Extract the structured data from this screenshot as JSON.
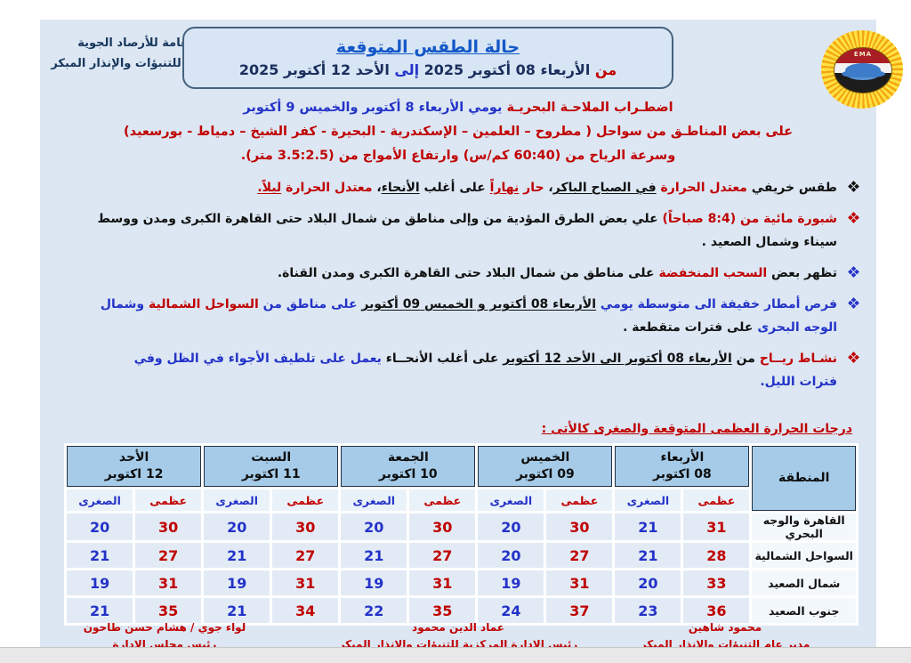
{
  "colors": {
    "red": "#c00000",
    "blue": "#2433c8",
    "navy": "#1b2f5e",
    "title_blue": "#1458c7",
    "doc_bg": "#dce7f3",
    "table_header_bg": "#a5cbe8"
  },
  "header": {
    "org_line1": "الهيئة العامة للأرصاد الجوية",
    "org_line2": "الإدارة العامة للتنبؤات والإنذار المبكر",
    "title": "حالة الطقس المتوقعة",
    "date_range": [
      {
        "t": "من ",
        "c": "r"
      },
      {
        "t": "الأربعاء 08 أكتوبر 2025 ",
        "c": "n"
      },
      {
        "t": "إلى ",
        "c": "b"
      },
      {
        "t": "الأحد 12 أكتوبر 2025",
        "c": "n"
      }
    ],
    "logo_text": "EMA"
  },
  "intro": {
    "line1": [
      {
        "t": "اضطـراب الملاحـة البحريـة ",
        "c": "r"
      },
      {
        "t": "يومي الأربعاء 8 أكتوبر والخميس 9 أكتوبر",
        "c": "b"
      }
    ],
    "line2": [
      {
        "t": "على بعض المناطـق من سواحل ( مطروح – العلمين – الإسكندرية - البحيرة - كفر الشيخ – دمياط - بورسعيد)",
        "c": "r"
      }
    ],
    "line3": [
      {
        "t": "وسرعة الرياح من (60:40 كم/س) وارتفاع الأمواج من (3.5:2.5 متر).",
        "c": "r"
      }
    ]
  },
  "bullets": [
    {
      "glyph_color": "k",
      "segments": [
        {
          "t": "طقس خريفي ",
          "c": "k"
        },
        {
          "t": "معتدل الحرارة ",
          "c": "r"
        },
        {
          "t": "في الصباح الباكر",
          "c": "k",
          "u": 1
        },
        {
          "t": "، ",
          "c": "k"
        },
        {
          "t": "حار ",
          "c": "r"
        },
        {
          "t": "نهاراً",
          "c": "r",
          "u": 1
        },
        {
          "t": " على أغلب ",
          "c": "k"
        },
        {
          "t": "الأنحاء",
          "c": "k",
          "u": 1
        },
        {
          "t": "، ",
          "c": "k"
        },
        {
          "t": "معتدل الحرارة ",
          "c": "r"
        },
        {
          "t": "ليلاً.",
          "c": "r",
          "u": 1
        }
      ]
    },
    {
      "glyph_color": "r",
      "segments": [
        {
          "t": "شبورة مائية من (8:4 صباحاً)",
          "c": "r"
        },
        {
          "t": " علي بعض الطرق المؤدية من وإلى مناطق من شمال البلاد حتى القاهرة الكبرى ومدن ووسط سيناء وشمال الصعيد .",
          "c": "k"
        }
      ]
    },
    {
      "glyph_color": "b",
      "segments": [
        {
          "t": "تظهر بعض ",
          "c": "k"
        },
        {
          "t": "السحب المنخفضة",
          "c": "r"
        },
        {
          "t": " على مناطق من شمال البلاد حتى القاهرة الكبرى ومدن القناة.",
          "c": "k"
        }
      ]
    },
    {
      "glyph_color": "b",
      "segments": [
        {
          "t": "فرص أمطار خفيفة الى متوسطة يومي ",
          "c": "b"
        },
        {
          "t": "الأربعاء 08 أكتوبر و الخميس 09 أكتوبر",
          "c": "k",
          "u": 1
        },
        {
          "t": " على مناطق من ",
          "c": "b"
        },
        {
          "t": "السواحل الشمالية",
          "c": "r"
        },
        {
          "t": " ",
          "c": "k"
        },
        {
          "t": "وشمال الوجه البحرى",
          "c": "b"
        },
        {
          "t": " على فترات متقطعة .",
          "c": "k"
        }
      ]
    },
    {
      "glyph_color": "r",
      "segments": [
        {
          "t": "نشـاط ريــاح ",
          "c": "r"
        },
        {
          "t": "من ",
          "c": "k"
        },
        {
          "t": "الأربعاء 08 أكتوبر الى الأحد 12 أكتوبر",
          "c": "k",
          "u": 1
        },
        {
          "t": " على أغلب الأنحــاء ",
          "c": "k"
        },
        {
          "t": "يعمل على تلطيف الأجواء في الظل وفي فترات الليل.",
          "c": "b"
        }
      ]
    }
  ],
  "temps_heading": "درجات الحرارة العظمى المتوقعة والصغرى كالأتى :",
  "table": {
    "region_header": "المنطقة",
    "sub_max": "عظمى",
    "sub_min": "الصغرى",
    "days": [
      {
        "name": "الأربعاء",
        "date": "08 اكتوبر"
      },
      {
        "name": "الخميس",
        "date": "09 اكتوبر"
      },
      {
        "name": "الجمعة",
        "date": "10 اكتوبر"
      },
      {
        "name": "السبت",
        "date": "11 اكتوبر"
      },
      {
        "name": "الأحد",
        "date": "12 اكتوبر"
      }
    ],
    "rows": [
      {
        "region": "القاهرة والوجه البحري",
        "temps": [
          [
            31,
            21
          ],
          [
            30,
            20
          ],
          [
            30,
            20
          ],
          [
            30,
            20
          ],
          [
            30,
            20
          ]
        ]
      },
      {
        "region": "السواحل الشمالية",
        "temps": [
          [
            28,
            21
          ],
          [
            27,
            20
          ],
          [
            27,
            21
          ],
          [
            27,
            21
          ],
          [
            27,
            21
          ]
        ]
      },
      {
        "region": "شمال الصعيد",
        "temps": [
          [
            33,
            20
          ],
          [
            31,
            19
          ],
          [
            31,
            19
          ],
          [
            31,
            19
          ],
          [
            31,
            19
          ]
        ]
      },
      {
        "region": "جنوب الصعيد",
        "temps": [
          [
            36,
            23
          ],
          [
            37,
            24
          ],
          [
            35,
            22
          ],
          [
            34,
            21
          ],
          [
            35,
            21
          ]
        ]
      }
    ]
  },
  "footer": {
    "signs": [
      {
        "name": "محمود شاهين",
        "title": "مدير عام التنبؤات والإنذار المبكر"
      },
      {
        "name": "عماد الدين محمود",
        "title": "رئيس الإدارة المركزية للتنبؤات والإنذار المبكر"
      },
      {
        "name": "لواء جوي / هشام حسن طاحون",
        "title": "رئيس مجلس الإدارة"
      }
    ]
  }
}
